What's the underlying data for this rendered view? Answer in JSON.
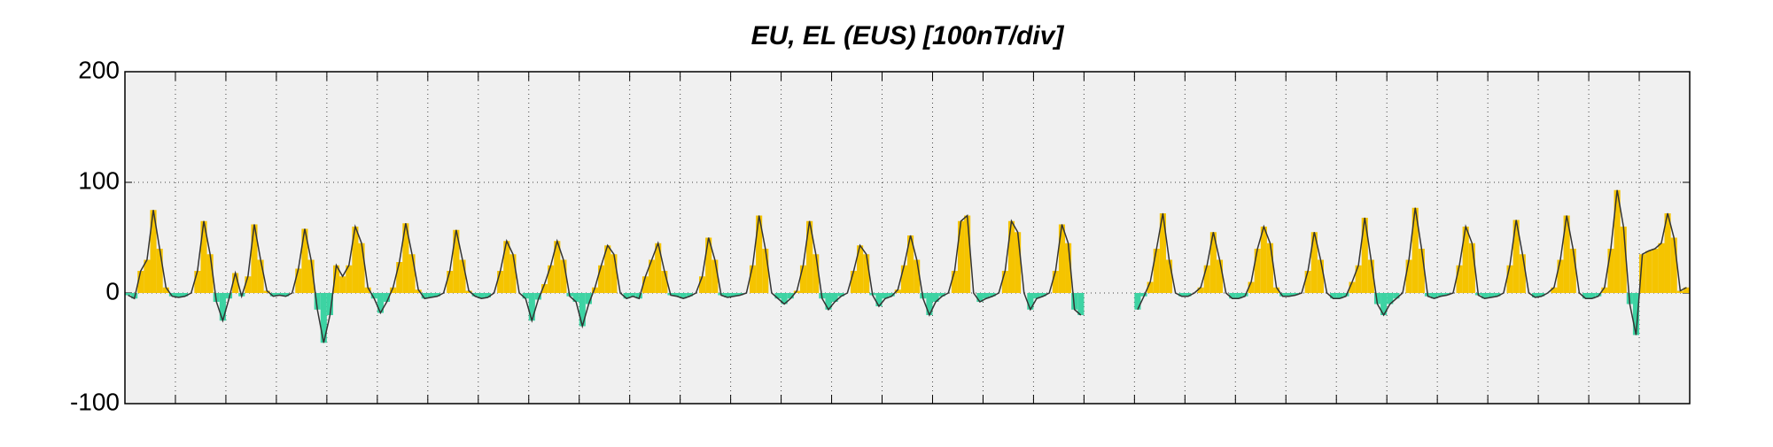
{
  "chart_data": {
    "type": "line",
    "title": "EU, EL (EUS)  [100nT/div]",
    "x": [
      0,
      0.125,
      0.25,
      0.375,
      0.5,
      0.625,
      0.75,
      0.875,
      1,
      1.125,
      1.25,
      1.375,
      1.5,
      1.625,
      1.75,
      1.875,
      2,
      2.125,
      2.25,
      2.375,
      2.5,
      2.625,
      2.75,
      2.875,
      3,
      3.125,
      3.25,
      3.375,
      3.5,
      3.625,
      3.75,
      3.875,
      4,
      4.125,
      4.25,
      4.375,
      4.5,
      4.625,
      4.75,
      4.875,
      5,
      5.125,
      5.25,
      5.375,
      5.5,
      5.625,
      5.75,
      5.875,
      6,
      6.125,
      6.25,
      6.375,
      6.5,
      6.625,
      6.75,
      6.875,
      7,
      7.125,
      7.25,
      7.375,
      7.5,
      7.625,
      7.75,
      7.875,
      8,
      8.125,
      8.25,
      8.375,
      8.5,
      8.625,
      8.75,
      8.875,
      9,
      9.125,
      9.25,
      9.375,
      9.5,
      9.625,
      9.75,
      9.875,
      10,
      10.125,
      10.25,
      10.375,
      10.5,
      10.625,
      10.75,
      10.875,
      11,
      11.125,
      11.25,
      11.375,
      11.5,
      11.625,
      11.75,
      11.875,
      12,
      12.125,
      12.25,
      12.375,
      12.5,
      12.625,
      12.75,
      12.875,
      13,
      13.125,
      13.25,
      13.375,
      13.5,
      13.625,
      13.75,
      13.875,
      14,
      14.125,
      14.25,
      14.375,
      14.5,
      14.625,
      14.75,
      14.875,
      15,
      15.125,
      15.25,
      15.375,
      15.5,
      15.625,
      15.75,
      15.875,
      16,
      16.125,
      16.25,
      16.375,
      16.5,
      16.625,
      16.75,
      16.875,
      17,
      17.125,
      17.25,
      17.375,
      17.5,
      17.625,
      17.75,
      17.875,
      18,
      18.125,
      18.25,
      18.375,
      18.5,
      18.625,
      18.75,
      18.875,
      19,
      19.125,
      19.25,
      19.375,
      19.5,
      19.625,
      19.75,
      19.875,
      20,
      20.125,
      20.25,
      20.375,
      20.5,
      20.625,
      20.75,
      20.875,
      21,
      21.125,
      21.25,
      21.375,
      21.5,
      21.625,
      21.75,
      21.875,
      22,
      22.125,
      22.25,
      22.375,
      22.5,
      22.625,
      22.75,
      22.875,
      23,
      23.125,
      23.25,
      23.375,
      23.5,
      23.625,
      23.75,
      23.875,
      24,
      24.125,
      24.25,
      24.375,
      24.5,
      24.625,
      24.75,
      24.875,
      25,
      25.125,
      25.25,
      25.375,
      25.5,
      25.625,
      25.75,
      25.875,
      26,
      26.125,
      26.25,
      26.375,
      26.5,
      26.625,
      26.75,
      26.875,
      27,
      27.125,
      27.25,
      27.375,
      27.5,
      27.625,
      27.75,
      27.875,
      28,
      28.125,
      28.25,
      28.375,
      28.5,
      28.625,
      28.75,
      28.875,
      29,
      29.125,
      29.25,
      29.375,
      29.5,
      29.625,
      29.75,
      29.875,
      30,
      30.125,
      30.25,
      30.375,
      30.5,
      30.625,
      30.75,
      30.875
    ],
    "values": [
      -2,
      -5,
      20,
      30,
      75,
      40,
      5,
      -3,
      -4,
      -3,
      0,
      20,
      65,
      35,
      -8,
      -25,
      -5,
      18,
      -3,
      15,
      62,
      30,
      2,
      -3,
      -2,
      -3,
      0,
      22,
      58,
      30,
      -15,
      -45,
      -20,
      25,
      15,
      25,
      60,
      45,
      5,
      -5,
      -18,
      -8,
      5,
      28,
      63,
      35,
      3,
      -5,
      -4,
      -3,
      0,
      20,
      57,
      30,
      2,
      -3,
      -5,
      -4,
      0,
      20,
      47,
      35,
      0,
      -5,
      -25,
      -6,
      8,
      25,
      47,
      30,
      -3,
      -8,
      -30,
      -10,
      5,
      25,
      43,
      35,
      0,
      -5,
      -3,
      -5,
      15,
      30,
      45,
      20,
      -2,
      -3,
      -5,
      -3,
      0,
      15,
      50,
      30,
      -2,
      -4,
      -3,
      -2,
      0,
      25,
      70,
      40,
      0,
      -5,
      -10,
      -5,
      2,
      25,
      65,
      35,
      -5,
      -15,
      -8,
      -3,
      0,
      20,
      43,
      35,
      -2,
      -12,
      -5,
      -3,
      3,
      25,
      52,
      30,
      -5,
      -20,
      -8,
      -3,
      0,
      20,
      65,
      70,
      0,
      -8,
      -5,
      -3,
      0,
      20,
      65,
      55,
      0,
      -15,
      -5,
      -3,
      0,
      20,
      62,
      45,
      -15,
      -20,
      null,
      null,
      null,
      null,
      null,
      null,
      null,
      null,
      -15,
      -3,
      10,
      40,
      72,
      30,
      0,
      -3,
      -3,
      0,
      5,
      25,
      55,
      30,
      0,
      -5,
      -5,
      -3,
      10,
      40,
      60,
      45,
      5,
      -3,
      -3,
      -2,
      0,
      20,
      55,
      30,
      0,
      -5,
      -5,
      -3,
      10,
      25,
      68,
      30,
      -10,
      -20,
      -10,
      -5,
      0,
      30,
      77,
      40,
      -3,
      -5,
      -3,
      -2,
      0,
      25,
      60,
      45,
      -2,
      -5,
      -4,
      -3,
      0,
      25,
      66,
      35,
      0,
      -4,
      -3,
      0,
      5,
      30,
      70,
      40,
      0,
      -5,
      -5,
      -3,
      5,
      40,
      93,
      60,
      -10,
      -38,
      35,
      38,
      40,
      45,
      72,
      50,
      2,
      5
    ],
    "color": "#333333",
    "pos_color": "#f5c400",
    "neg_color": "#3dd3a3",
    "title_color": "#e00000",
    "xlim": [
      0,
      31
    ],
    "xticks": [
      0,
      1,
      2,
      3,
      4,
      5,
      6,
      7,
      8,
      9,
      10,
      11,
      12,
      13,
      14,
      15,
      16,
      17,
      18,
      19,
      20,
      21,
      22,
      23,
      24,
      25,
      26,
      27,
      28,
      29,
      30,
      31
    ],
    "ylim": [
      -100,
      200
    ],
    "yticks": [
      -100,
      0,
      100,
      200
    ],
    "grid": true
  }
}
